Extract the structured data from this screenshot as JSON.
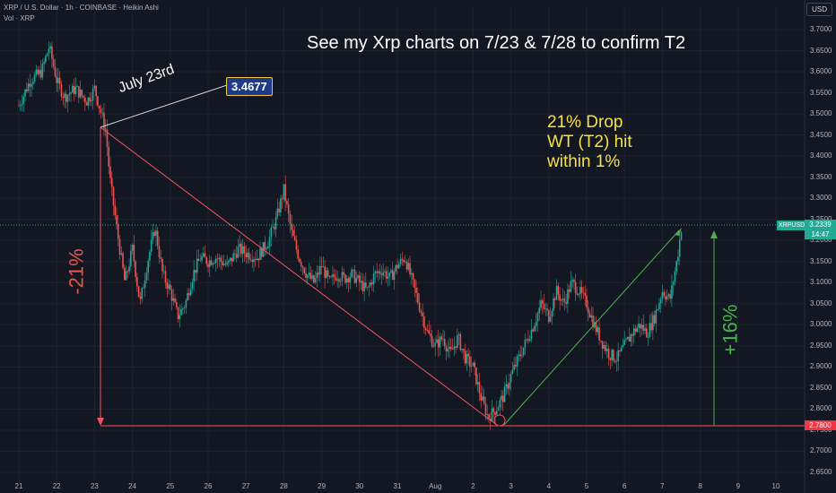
{
  "header": {
    "title": "XRP / U.S. Dollar · 1h · COINBASE · Heikin Ashi",
    "volume": "Vol · XRP",
    "currency": "USD"
  },
  "annotations": {
    "main_note": "See my Xrp charts on 7/23 & 7/28 to confirm T2",
    "drop_line1": "21% Drop",
    "drop_line2": "WT (T2) hit",
    "drop_line3": "within 1%",
    "july_label": "July 23rd",
    "price_label": "3.4677",
    "pct_down": "-21%",
    "pct_up": "+16%"
  },
  "price_tags": {
    "low_level": "2.7800",
    "symbol": "XRPUSD",
    "last_price": "3.2339",
    "countdown": "14:47"
  },
  "colors": {
    "background": "#131722",
    "up": "#26a69a",
    "down": "#ef5350",
    "trend_red": "#f7525f",
    "trend_green": "#4caf50",
    "note_yellow": "#f5e04a"
  },
  "chart_data": {
    "type": "candlestick",
    "subtype": "heikin_ashi",
    "ylim": [
      2.64,
      3.72
    ],
    "yticks": [
      "3.7000",
      "3.6500",
      "3.6000",
      "3.5500",
      "3.5000",
      "3.4500",
      "3.4000",
      "3.3500",
      "3.3000",
      "3.2500",
      "3.2000",
      "3.1500",
      "3.1000",
      "3.0500",
      "3.0000",
      "2.9500",
      "2.9000",
      "2.8500",
      "2.8000",
      "2.7500",
      "2.7000",
      "2.6500"
    ],
    "xticks": [
      "21",
      "22",
      "23",
      "24",
      "25",
      "26",
      "27",
      "28",
      "29",
      "30",
      "31",
      "Aug",
      "2",
      "3",
      "4",
      "5",
      "6",
      "7",
      "8",
      "9",
      "10"
    ],
    "x_day_index": [
      0,
      1,
      2,
      3,
      4,
      5,
      6,
      7,
      8,
      9,
      10,
      11,
      12,
      13,
      14,
      15,
      16,
      17,
      18,
      19,
      20
    ],
    "price_path_day_vs_close": [
      [
        0.0,
        3.52
      ],
      [
        0.3,
        3.58
      ],
      [
        0.6,
        3.6
      ],
      [
        0.8,
        3.66
      ],
      [
        1.0,
        3.58
      ],
      [
        1.2,
        3.54
      ],
      [
        1.5,
        3.56
      ],
      [
        1.8,
        3.53
      ],
      [
        2.0,
        3.56
      ],
      [
        2.3,
        3.46
      ],
      [
        2.4,
        3.35
      ],
      [
        2.6,
        3.22
      ],
      [
        2.8,
        3.1
      ],
      [
        3.0,
        3.18
      ],
      [
        3.2,
        3.05
      ],
      [
        3.4,
        3.15
      ],
      [
        3.6,
        3.23
      ],
      [
        3.8,
        3.12
      ],
      [
        4.0,
        3.08
      ],
      [
        4.2,
        3.02
      ],
      [
        4.4,
        3.05
      ],
      [
        4.6,
        3.12
      ],
      [
        4.8,
        3.16
      ],
      [
        5.0,
        3.15
      ],
      [
        5.2,
        3.16
      ],
      [
        5.5,
        3.14
      ],
      [
        5.8,
        3.18
      ],
      [
        6.0,
        3.17
      ],
      [
        6.3,
        3.16
      ],
      [
        6.6,
        3.2
      ],
      [
        6.8,
        3.25
      ],
      [
        7.0,
        3.32
      ],
      [
        7.2,
        3.22
      ],
      [
        7.4,
        3.16
      ],
      [
        7.6,
        3.12
      ],
      [
        7.8,
        3.1
      ],
      [
        8.0,
        3.14
      ],
      [
        8.2,
        3.1
      ],
      [
        8.4,
        3.12
      ],
      [
        8.6,
        3.11
      ],
      [
        8.8,
        3.12
      ],
      [
        9.0,
        3.1
      ],
      [
        9.2,
        3.08
      ],
      [
        9.4,
        3.12
      ],
      [
        9.6,
        3.13
      ],
      [
        9.8,
        3.11
      ],
      [
        10.0,
        3.14
      ],
      [
        10.2,
        3.16
      ],
      [
        10.4,
        3.1
      ],
      [
        10.6,
        3.04
      ],
      [
        10.8,
        2.98
      ],
      [
        11.0,
        2.95
      ],
      [
        11.2,
        2.97
      ],
      [
        11.4,
        2.93
      ],
      [
        11.6,
        2.97
      ],
      [
        11.8,
        2.92
      ],
      [
        12.0,
        2.9
      ],
      [
        12.2,
        2.83
      ],
      [
        12.4,
        2.78
      ],
      [
        12.6,
        2.8
      ],
      [
        12.8,
        2.83
      ],
      [
        13.0,
        2.88
      ],
      [
        13.2,
        2.92
      ],
      [
        13.4,
        2.96
      ],
      [
        13.6,
        3.0
      ],
      [
        13.8,
        3.05
      ],
      [
        14.0,
        3.02
      ],
      [
        14.2,
        3.08
      ],
      [
        14.4,
        3.05
      ],
      [
        14.6,
        3.1
      ],
      [
        14.8,
        3.08
      ],
      [
        15.0,
        3.05
      ],
      [
        15.2,
        3.0
      ],
      [
        15.4,
        2.96
      ],
      [
        15.6,
        2.93
      ],
      [
        15.8,
        2.92
      ],
      [
        16.0,
        2.95
      ],
      [
        16.2,
        2.98
      ],
      [
        16.4,
        3.0
      ],
      [
        16.6,
        2.98
      ],
      [
        16.8,
        3.02
      ],
      [
        17.0,
        3.08
      ],
      [
        17.2,
        3.06
      ],
      [
        17.4,
        3.16
      ],
      [
        17.5,
        3.23
      ]
    ],
    "levels": {
      "low": 2.78,
      "last": 3.2339,
      "marked_high": 3.4677
    }
  }
}
